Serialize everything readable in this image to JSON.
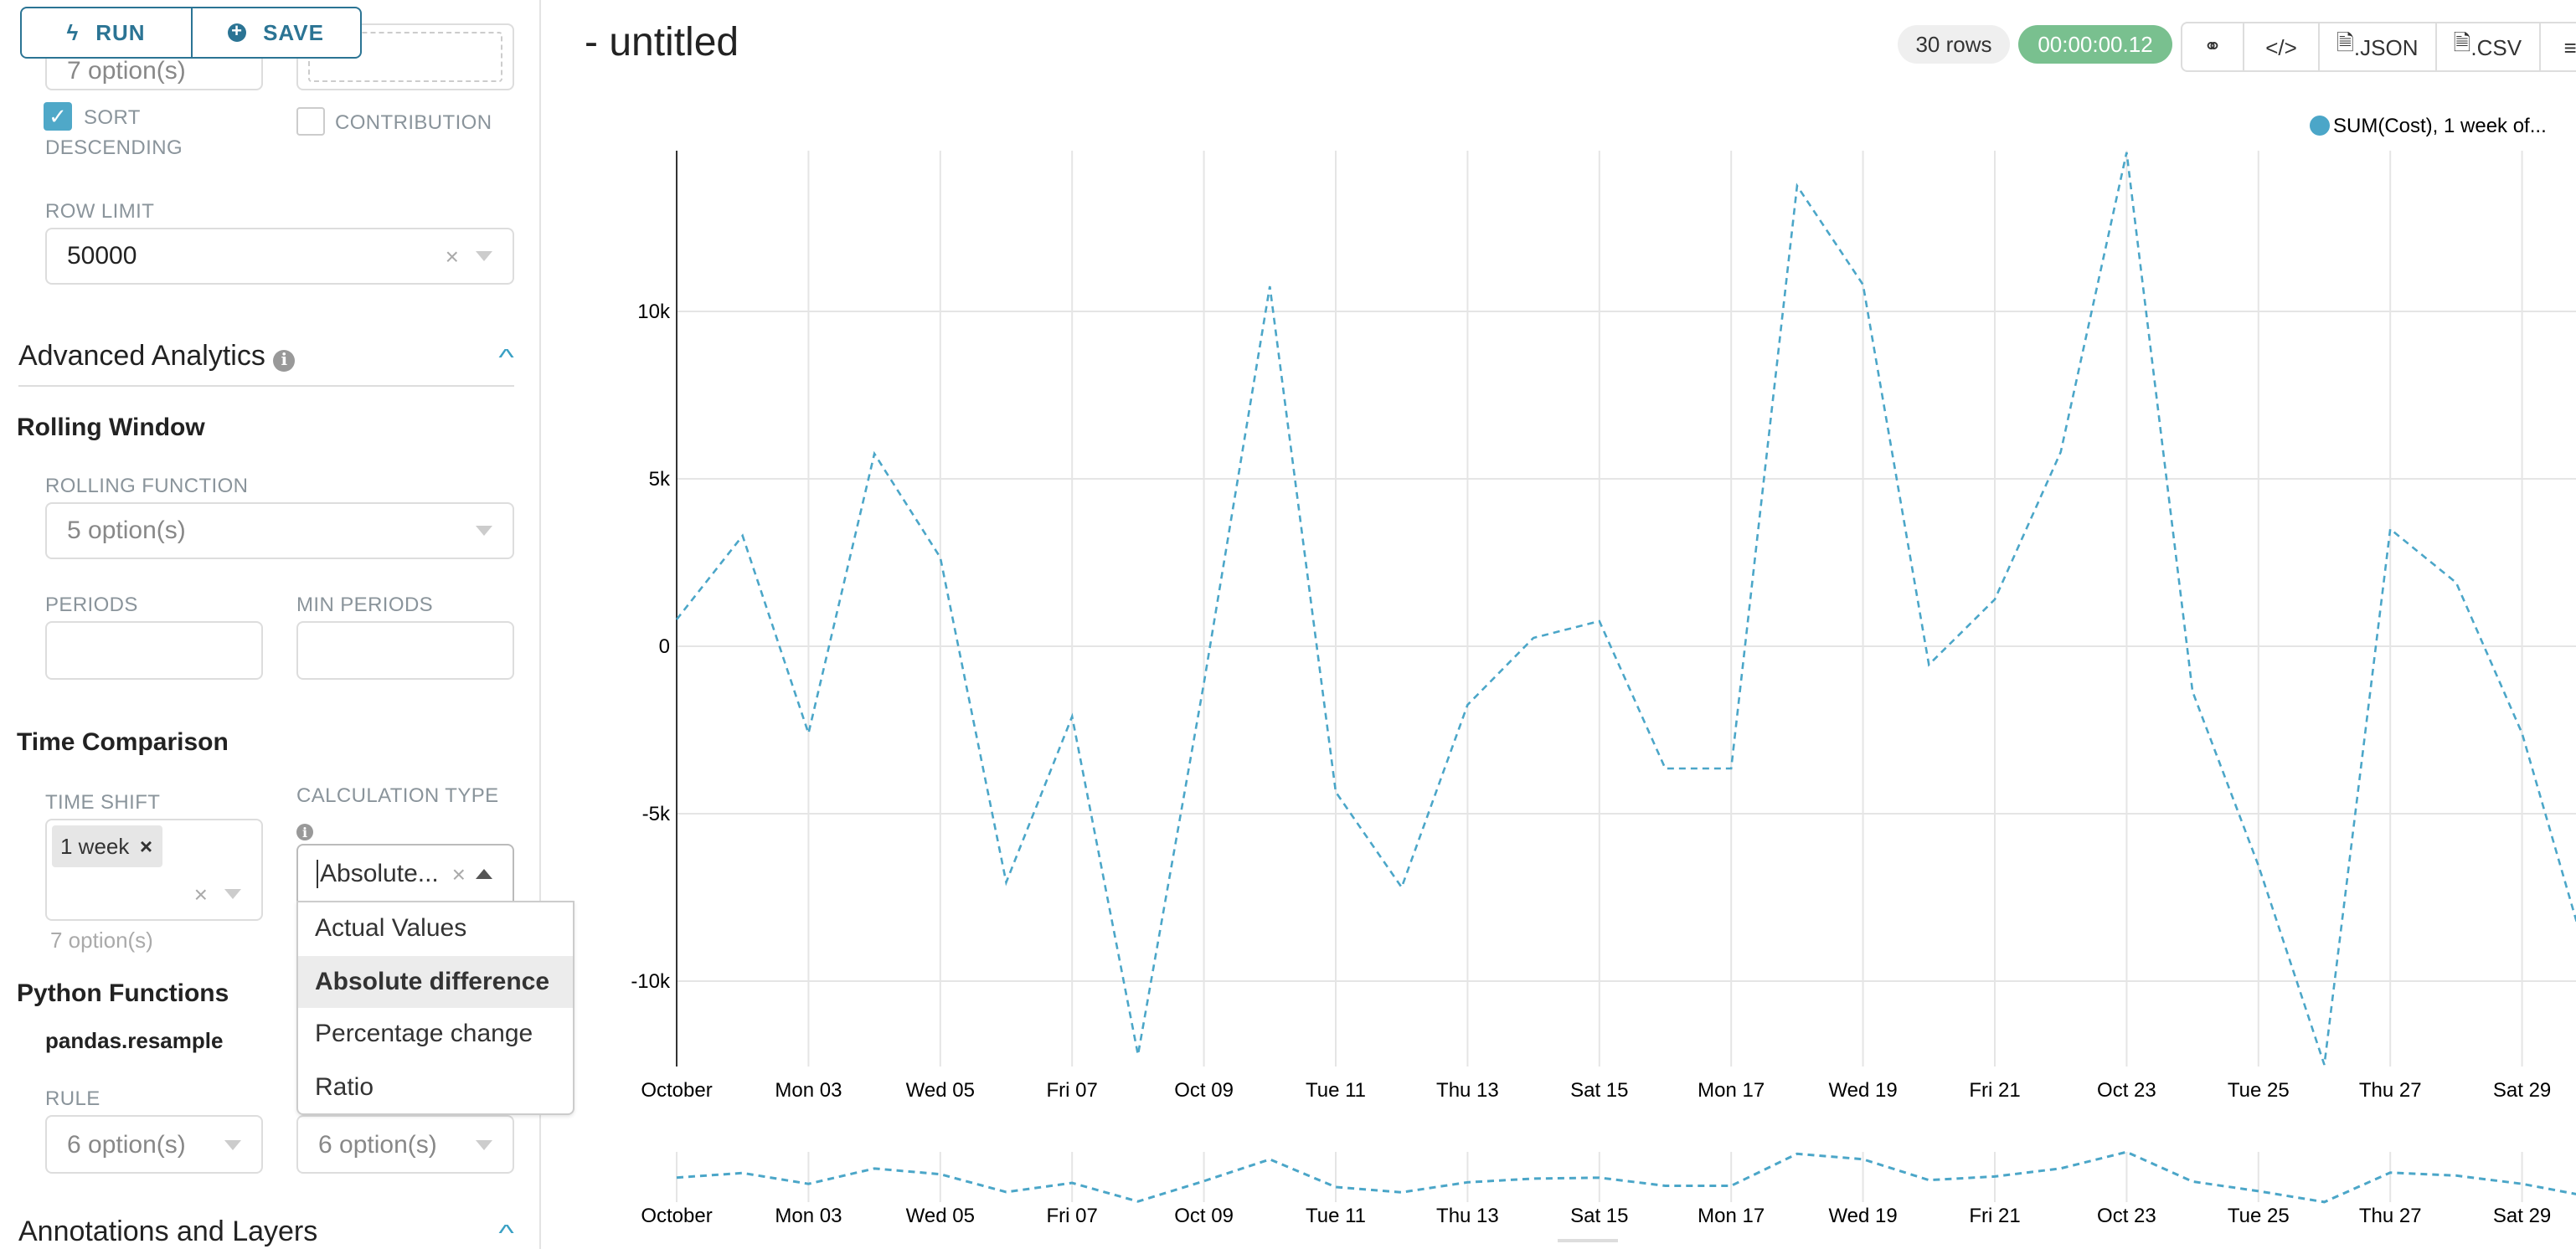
{
  "toolbar": {
    "run_label": "RUN",
    "save_label": "SAVE",
    "run_icon": "bolt-icon",
    "save_icon": "plus-circle-icon"
  },
  "sidebar": {
    "partial_select_value": "7 option(s)",
    "sort_descending": {
      "label_line1": "SORT",
      "label_line2": "DESCENDING",
      "checked": true
    },
    "contribution": {
      "label": "CONTRIBUTION",
      "checked": false
    },
    "row_limit": {
      "label": "ROW LIMIT",
      "value": "50000"
    },
    "advanced_analytics": {
      "title": "Advanced Analytics",
      "expanded": true
    },
    "rolling_window": {
      "title": "Rolling Window",
      "rolling_function_label": "ROLLING FUNCTION",
      "rolling_function_placeholder": "5 option(s)",
      "periods_label": "PERIODS",
      "min_periods_label": "MIN PERIODS",
      "periods_value": "",
      "min_periods_value": ""
    },
    "time_comparison": {
      "title": "Time Comparison",
      "time_shift_label": "TIME SHIFT",
      "time_shift_tag": "1 week",
      "time_shift_hint": "7 option(s)",
      "calc_type_label": "CALCULATION TYPE",
      "calc_type_value": "Absolute...",
      "calc_options": [
        "Actual Values",
        "Absolute difference",
        "Percentage change",
        "Ratio"
      ],
      "highlighted_option": "Absolute difference"
    },
    "python_functions": {
      "title": "Python Functions",
      "subtitle": "pandas.resample",
      "rule_label": "RULE",
      "rule_placeholder": "6 option(s)",
      "method_placeholder": "6 option(s)"
    },
    "annotations": {
      "title": "Annotations and Layers",
      "expanded": true
    }
  },
  "header": {
    "title": "- untitled",
    "rows_badge": "30 rows",
    "timer": "00:00:00.12",
    "json_label": ".JSON",
    "csv_label": ".CSV"
  },
  "colors": {
    "accent": "#2b7494",
    "series": "#4ba6c8",
    "timer_bg": "#79c08f",
    "checkbox": "#4fa8c8"
  },
  "chart_data": {
    "type": "line",
    "line_style": "dashed",
    "legend": {
      "entries": [
        "SUM(Cost), 1 week of..."
      ],
      "position": "top-right"
    },
    "x": [
      "2016-10-01",
      "2016-10-02",
      "2016-10-03",
      "2016-10-04",
      "2016-10-05",
      "2016-10-06",
      "2016-10-07",
      "2016-10-08",
      "2016-10-09",
      "2016-10-10",
      "2016-10-11",
      "2016-10-12",
      "2016-10-13",
      "2016-10-14",
      "2016-10-15",
      "2016-10-16",
      "2016-10-17",
      "2016-10-18",
      "2016-10-19",
      "2016-10-20",
      "2016-10-21",
      "2016-10-22",
      "2016-10-23",
      "2016-10-24",
      "2016-10-25",
      "2016-10-26",
      "2016-10-27",
      "2016-10-28",
      "2016-10-29",
      "2016-10-30"
    ],
    "series": [
      {
        "name": "SUM(Cost), 1 week of...",
        "values": [
          800,
          3300,
          -2600,
          5750,
          2650,
          -7050,
          -2100,
          -12200,
          -1100,
          10750,
          -4350,
          -7200,
          -1750,
          250,
          750,
          -3650,
          -3650,
          13750,
          10800,
          -550,
          1400,
          5800,
          14750,
          -1350,
          -6550,
          -12500,
          3500,
          1900,
          -2600,
          -9400
        ]
      }
    ],
    "x_tick_labels": [
      "October",
      "Mon 03",
      "Wed 05",
      "Fri 07",
      "Oct 09",
      "Tue 11",
      "Thu 13",
      "Sat 15",
      "Mon 17",
      "Wed 19",
      "Fri 21",
      "Oct 23",
      "Tue 25",
      "Thu 27",
      "Sat 29"
    ],
    "y_ticks": [
      10000,
      5000,
      0,
      -5000,
      -10000
    ],
    "y_tick_labels": [
      "10k",
      "5k",
      "0",
      "-5k",
      "-10k"
    ],
    "ylim": [
      -12550,
      14800
    ],
    "grid": true,
    "brush": true
  }
}
